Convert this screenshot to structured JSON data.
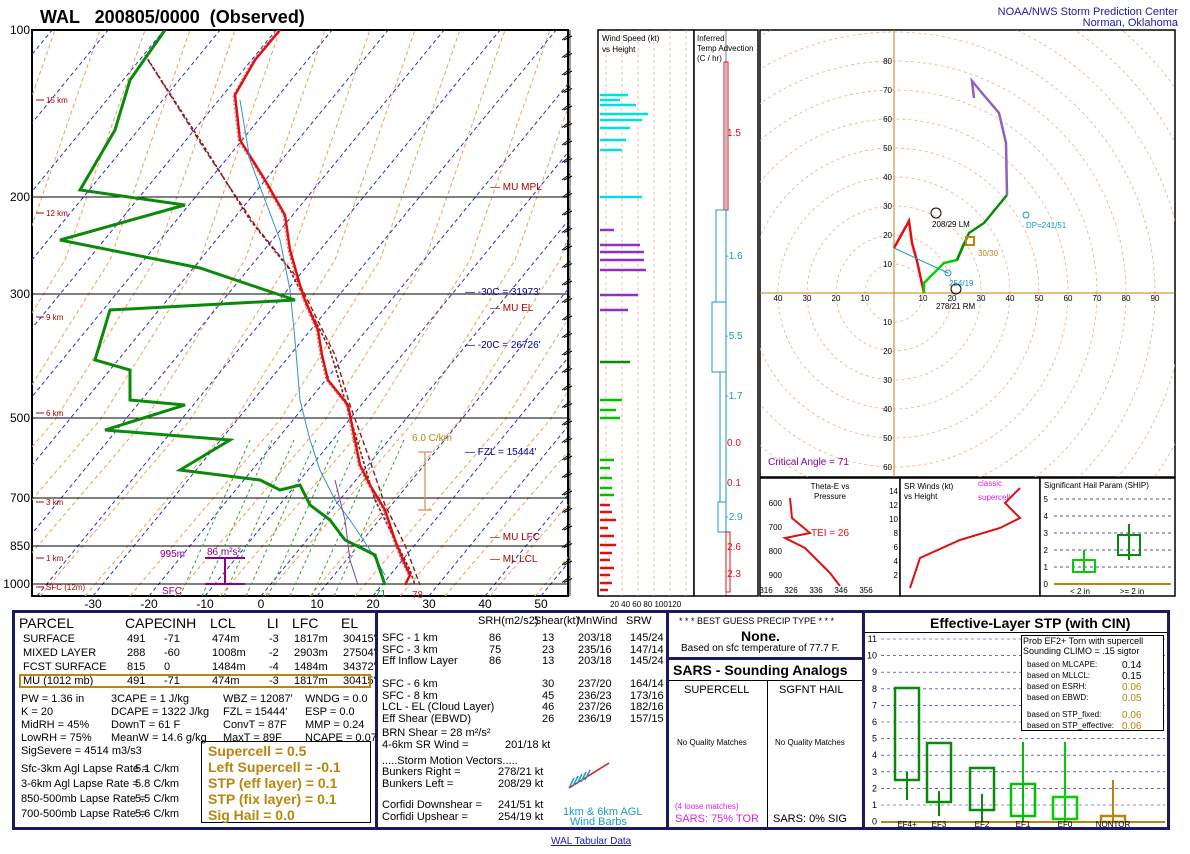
{
  "header": {
    "title": "WAL   200805/0000  (Observed)",
    "org1": "NOAA/NWS Storm Prediction Center",
    "org2": "Norman, Oklahoma",
    "footer": "WAL Tabular Data"
  },
  "skewt": {
    "pressure_labels": [
      "100",
      "200",
      "300",
      "500",
      "700",
      "850",
      "1000"
    ],
    "temp_labels": [
      "-30",
      "-20",
      "-10",
      "0",
      "10",
      "20",
      "30",
      "40",
      "50"
    ],
    "height_labels": [
      "15 km",
      "12 km",
      "9 km",
      "6 km",
      "3 km",
      "1 km",
      "SFC (12m)"
    ],
    "annotations": [
      "MU MPL",
      "MU EL",
      "MU LFC",
      "ML LCL",
      "-30C = 31973'",
      "-20C = 26726'",
      "FZL = 15444'",
      "6.0 C/km",
      "995m",
      "86 m²s²",
      "SFC",
      "71",
      "78"
    ]
  },
  "wind_speed": {
    "title1": "Wind Speed (kt)",
    "title2": "vs Height",
    "axis": "20 40 60 80 100120"
  },
  "temp_adv": {
    "title1": "Inferred",
    "title2": "Temp Advection",
    "title3": "(C / hr)",
    "values": [
      "1.5",
      "-1.6",
      "-5.5",
      "-1.7",
      "0.0",
      "0.1",
      "-2.9",
      "2.6",
      "2.3"
    ]
  },
  "hodo": {
    "axis": [
      "40",
      "30",
      "20",
      "10",
      "10",
      "20",
      "30",
      "40",
      "50",
      "60",
      "70",
      "80",
      "90"
    ],
    "lm": "208/29 LM",
    "rm": "278/21 RM",
    "dp": "DP=241/51",
    "up": "254/19",
    "ca": "Critical Angle = 71",
    "ptlbl": "30/30"
  },
  "thetae": {
    "title1": "Theta-E vs",
    "title2": "Pressure",
    "tei": "TEI = 26",
    "ylabels": [
      "600",
      "700",
      "800",
      "900"
    ],
    "xlabels": [
      "316",
      "326",
      "336",
      "346",
      "356"
    ]
  },
  "srwinds": {
    "title1": "SR Winds (kt)",
    "title2": "vs Height",
    "classic": "classic",
    "supercell": "supercell",
    "ylabels": [
      "14",
      "12",
      "10",
      "8",
      "6",
      "4",
      "2"
    ]
  },
  "ship": {
    "title": "Significant Hail Param (SHIP)",
    "lt": "< 2 in",
    "ge": ">= 2 in",
    "ylabels": [
      "5",
      "4",
      "3",
      "2",
      "1",
      "0"
    ]
  },
  "parcels": {
    "headers": [
      "PARCEL",
      "CAPE",
      "CINH",
      "LCL",
      "LI",
      "LFC",
      "EL"
    ],
    "rows": [
      [
        "SURFACE",
        "491",
        "-71",
        "474m",
        "-3",
        "1817m",
        "30415'"
      ],
      [
        "MIXED LAYER",
        "288",
        "-60",
        "1008m",
        "-2",
        "2903m",
        "27504'"
      ],
      [
        "FCST SURFACE",
        "815",
        "0",
        "1484m",
        "-4",
        "1484m",
        "34372'"
      ],
      [
        "MU (1012 mb)",
        "491",
        "-71",
        "474m",
        "-3",
        "1817m",
        "30415'"
      ]
    ]
  },
  "indices": [
    [
      "PW = 1.36 in",
      "3CAPE = 1 J/kg",
      "WBZ = 12087'",
      "WNDG = 0.0"
    ],
    [
      "K = 20",
      "DCAPE = 1322 J/kg",
      "FZL = 15444'",
      "ESP = 0.0"
    ],
    [
      "MidRH = 45%",
      "DownT = 61 F",
      "ConvT = 87F",
      "MMP = 0.24"
    ],
    [
      "LowRH = 75%",
      "MeanW = 14.6 g/kg",
      "MaxT = 89F",
      "NCAPE = 0.07"
    ],
    [
      "SigSevere = 4514 m3/s3",
      "",
      "",
      ""
    ]
  ],
  "lapse": [
    [
      "Sfc-3km Agl Lapse Rate =",
      "5.1 C/km"
    ],
    [
      "3-6km Agl Lapse Rate =",
      "5.8 C/km"
    ],
    [
      "850-500mb Lapse Rate =",
      "5.5 C/km"
    ],
    [
      "700-500mb Lapse Rate =",
      "5.6 C/km"
    ]
  ],
  "composites": [
    "Supercell = 0.5",
    "Left Supercell = -0.1",
    "STP (eff layer) = 0.1",
    "STP (fix layer) = 0.1",
    "Sig Hail = 0.0"
  ],
  "kinematics": {
    "headers": [
      "SRH(m2/s2)",
      "Shear(kt)",
      "MnWind",
      "SRW"
    ],
    "rows": [
      [
        "SFC - 1 km",
        "86",
        "13",
        "203/18",
        "145/24"
      ],
      [
        "SFC - 3 km",
        "75",
        "23",
        "235/16",
        "147/14"
      ],
      [
        "Eff Inflow Layer",
        "86",
        "13",
        "203/18",
        "145/24"
      ],
      [
        "",
        "",
        "",
        "",
        ""
      ],
      [
        "SFC - 6 km",
        "",
        "30",
        "237/20",
        "164/14"
      ],
      [
        "SFC - 8 km",
        "",
        "45",
        "236/23",
        "173/16"
      ],
      [
        "LCL - EL (Cloud Layer)",
        "",
        "46",
        "237/26",
        "182/16"
      ],
      [
        "Eff Shear (EBWD)",
        "",
        "26",
        "236/19",
        "157/15"
      ]
    ],
    "brn": "BRN Shear = 28 m²/s²",
    "srw46": "4-6km SR Wind =",
    "srw46v": "201/18 kt",
    "storm_title": ".....Storm Motion Vectors.....",
    "storm": [
      [
        "Bunkers Right =",
        "278/21 kt"
      ],
      [
        "Bunkers Left =",
        "208/29 kt"
      ],
      [
        "Corfidi Downshear =",
        "241/51 kt"
      ],
      [
        "Corfidi Upshear =",
        "254/19 kt"
      ]
    ],
    "barb1": "1km & 6km AGL",
    "barb2": "Wind Barbs"
  },
  "precip": {
    "title": "* * * BEST GUESS PRECIP TYPE * * *",
    "value": "None.",
    "note": "Based on sfc temperature of 77.7 F."
  },
  "sars": {
    "title": "SARS - Sounding Analogs",
    "col1": "SUPERCELL",
    "col2": "SGFNT HAIL",
    "nm1": "No Quality Matches",
    "nm2": "No Quality Matches",
    "loose": "(4 loose matches)",
    "s1": "SARS:  75% TOR",
    "s2": "SARS:  0% SIG"
  },
  "stp": {
    "title": "Effective-Layer STP (with CIN)",
    "prob": "Prob EF2+ Torn with supercell",
    "climo": "Sounding CLIMO = .15 sigtor",
    "based": [
      [
        "based on MLCAPE:",
        "0.14"
      ],
      [
        "based on MLLCL:",
        "0.15"
      ],
      [
        "based on ESRH:",
        "0.06"
      ],
      [
        "based on EBWD:",
        "0.05"
      ],
      [
        "based on STP_fixed:",
        "0.06"
      ],
      [
        "based on STP_effective:",
        "0.06"
      ]
    ],
    "ylabels": [
      "11",
      "10",
      "9",
      "8",
      "7",
      "6",
      "5",
      "4",
      "3",
      "2",
      "1",
      "0"
    ],
    "cats": [
      "EF4+",
      "EF3",
      "EF2",
      "EF1",
      "EF0",
      "NONTOR"
    ]
  }
}
